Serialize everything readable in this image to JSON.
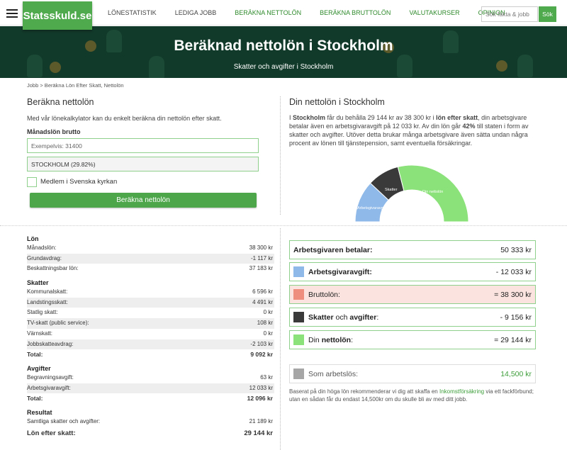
{
  "nav": {
    "logo": "Statsskuld.se",
    "items": [
      "LÖNESTATISTIK",
      "LEDIGA JOBB",
      "BERÄKNA NETTOLÖN",
      "BERÄKNA BRUTTOLÖN",
      "VALUTAKURSER",
      "OPINION"
    ],
    "search_placeholder": "Sök fakta & jobb",
    "search_button": "Sök"
  },
  "hero": {
    "title": "Beräknad nettolön i Stockholm",
    "subtitle": "Skatter och avgifter i Stockholm"
  },
  "breadcrumb": "Jobb > Beräkna Lön Efter Skatt, Nettolön",
  "calc": {
    "title": "Beräkna nettolön",
    "intro": "Med vår lönekalkylator kan du enkelt beräkna din nettolön efter skatt.",
    "salary_label": "Månadslön brutto",
    "salary_placeholder": "Exempelvis: 31400",
    "municipality": "STOCKHOLM (29.82%)",
    "church_label": "Medlem i Svenska kyrkan",
    "button": "Beräkna nettolön"
  },
  "result": {
    "title": "Din nettolön i Stockholm",
    "text_1": "I ",
    "text_city": "Stockholm",
    "text_2": " får du behålla 29 144 kr av 38 300 kr i ",
    "text_bold2": "lön efter skatt",
    "text_3": ", din arbetsgivare betalar även en arbetsgivaravgift på 12 033 kr. Av din lön går ",
    "text_pct": "42%",
    "text_4": " till staten i form av skatter och avgifter. Utöver detta brukar många arbetsgivare även sätta undan några procent av lönen till tjänstepension, samt eventuella försäkringar."
  },
  "gauge": {
    "segments": [
      {
        "label": "Arbetsgivaravgift",
        "value": 12033,
        "color": "#8fb9e8"
      },
      {
        "label": "Skatter",
        "value": 9156,
        "color": "#3a3a3a"
      },
      {
        "label": "Din nettolön",
        "value": 29144,
        "color": "#8ce27a"
      }
    ]
  },
  "table": {
    "lon_title": "Lön",
    "lon": [
      {
        "label": "Månadslön:",
        "value": "38 300 kr"
      },
      {
        "label": "Grundavdrag:",
        "value": "-1 117 kr"
      },
      {
        "label": "Beskattningsbar lön:",
        "value": "37 183 kr"
      }
    ],
    "skatter_title": "Skatter",
    "skatter": [
      {
        "label": "Kommunalskatt:",
        "value": "6 596 kr"
      },
      {
        "label": "Landstingsskatt:",
        "value": "4 491 kr"
      },
      {
        "label": "Statlig skatt:",
        "value": "0 kr"
      },
      {
        "label": "TV-skatt (public service):",
        "value": "108 kr"
      },
      {
        "label": "Värnskatt:",
        "value": "0 kr"
      },
      {
        "label": "Jobbskatteavdrag:",
        "value": "-2 103 kr"
      }
    ],
    "skatter_total_label": "Total:",
    "skatter_total": "9 092 kr",
    "avgifter_title": "Avgifter",
    "avgifter": [
      {
        "label": "Begravningsavgift:",
        "value": "63 kr"
      },
      {
        "label": "Arbetsgivaravgift:",
        "value": "12 033 kr"
      }
    ],
    "avgifter_total_label": "Total:",
    "avgifter_total": "12 096 kr",
    "resultat_title": "Resultat",
    "resultat_label": "Samtliga skatter och avgifter:",
    "resultat_value": "21 189 kr",
    "final_label": "Lön efter skatt:",
    "final_value": "29 144 kr"
  },
  "summary": {
    "employer_label": "Arbetsgivaren betalar:",
    "employer_value": "50 333 kr",
    "fee_label": "Arbetsgivaravgift:",
    "fee_value": "- 12 033 kr",
    "gross_label": "Bruttolön:",
    "gross_value": "= 38 300 kr",
    "tax_label_b1": "Skatter",
    "tax_label_m": " och ",
    "tax_label_b2": "avgifter",
    "tax_label_end": ":",
    "tax_value": "- 9 156 kr",
    "net_label_1": "Din ",
    "net_label_b": "nettolön",
    "net_label_end": ":",
    "net_value": "= 29 144 kr",
    "unemp_label": "Som arbetslös:",
    "unemp_value": "14,500 kr",
    "note_1": "Baserat på din höga lön rekommenderar vi dig att skaffa en ",
    "note_link": "Inkomstförsäkring",
    "note_2": " via ett fackförbund; utan en sådan får du endast 14,500kr om du skulle bli av med ditt jobb.",
    "colors": {
      "fee": "#8fb9e8",
      "gross": "#ee8e7e",
      "tax": "#3a3a3a",
      "net": "#8ce27a",
      "unemp": "#a6a6a6",
      "gross_bg": "#fbe4df"
    }
  }
}
